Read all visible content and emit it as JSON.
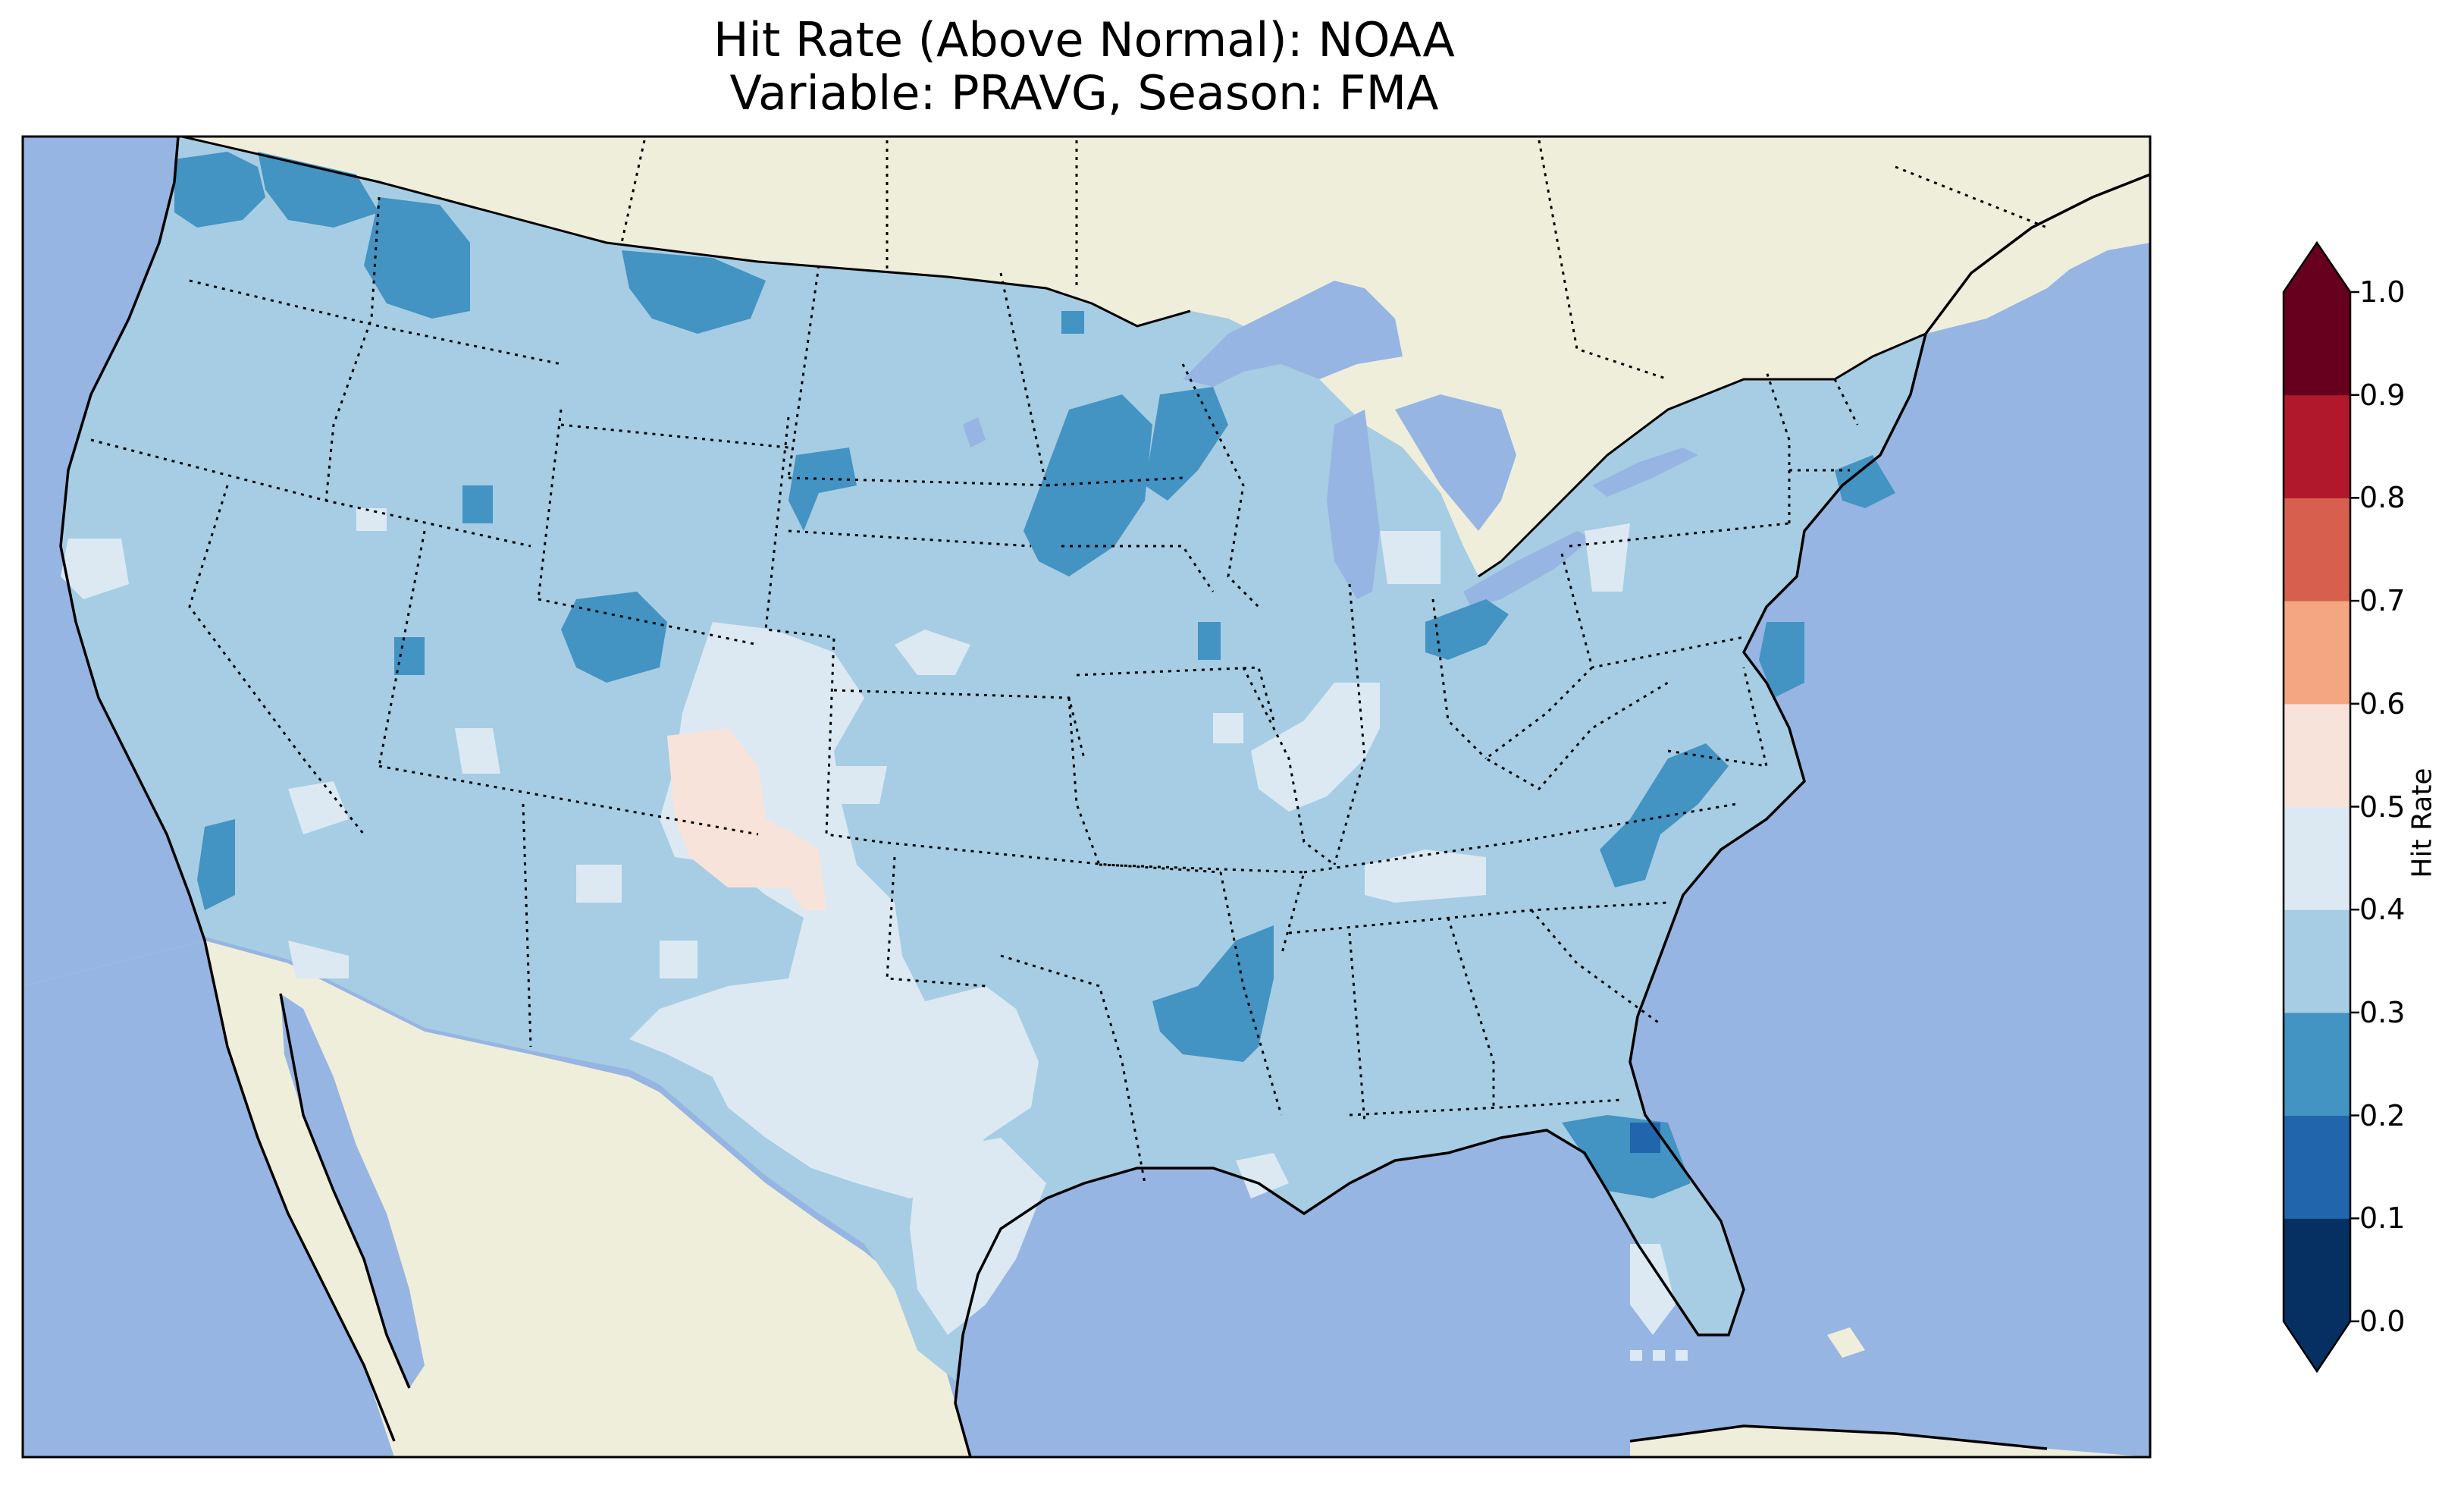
{
  "title": {
    "line1": "Hit Rate (Above Normal): NOAA",
    "line2": "Variable: PRAVG, Season: FMA"
  },
  "colorbar": {
    "label": "Hit Rate",
    "ticks": [
      "0.0",
      "0.1",
      "0.2",
      "0.3",
      "0.4",
      "0.5",
      "0.6",
      "0.7",
      "0.8",
      "0.9",
      "1.0"
    ],
    "bins": [
      {
        "range": "0.0-0.1",
        "color": "#053061"
      },
      {
        "range": "0.1-0.2",
        "color": "#2166ac"
      },
      {
        "range": "0.2-0.3",
        "color": "#4393c3"
      },
      {
        "range": "0.3-0.4",
        "color": "#a6cde3"
      },
      {
        "range": "0.4-0.5",
        "color": "#dce9f3"
      },
      {
        "range": "0.5-0.6",
        "color": "#f8e3da"
      },
      {
        "range": "0.6-0.7",
        "color": "#f4a582"
      },
      {
        "range": "0.7-0.8",
        "color": "#d6604d"
      },
      {
        "range": "0.8-0.9",
        "color": "#b2182b"
      },
      {
        "range": "0.9-1.0",
        "color": "#67001f"
      }
    ],
    "extend": "both"
  },
  "map": {
    "region": "Contiguous United States",
    "dominant_range": "0.3-0.4",
    "ocean_color": "#97b5e2",
    "land_color": "#efeedb"
  }
}
